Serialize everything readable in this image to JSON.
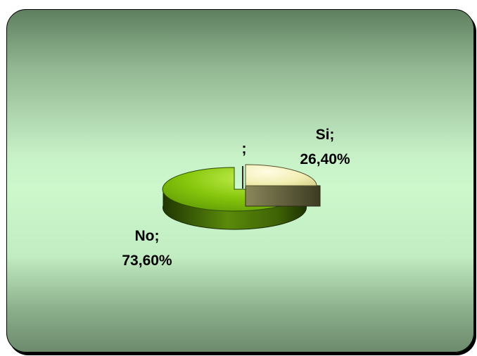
{
  "chart_data": {
    "type": "pie",
    "style": "3d-exploded",
    "slices": [
      {
        "label": "Si",
        "value": 26.4,
        "display": "26,40%",
        "color": "#f4f0b8",
        "side_color": "#6b6a3e"
      },
      {
        "label": "No",
        "value": 73.6,
        "display": "73,60%",
        "color": "#8fcf10",
        "side_color": "#3f6105"
      },
      {
        "label": "",
        "value": 0,
        "display": "",
        "color": "#c0c0c0",
        "side_color": "#606060"
      }
    ],
    "labels": {
      "si_name": "Si;",
      "si_value": "26,40%",
      "no_name": "No;",
      "no_value": "73,60%",
      "empty": ";"
    },
    "legend": "none",
    "background": {
      "top": "#5f7f5f",
      "middle": "#ccf8cc",
      "bottom": "#6d8a6d"
    }
  }
}
